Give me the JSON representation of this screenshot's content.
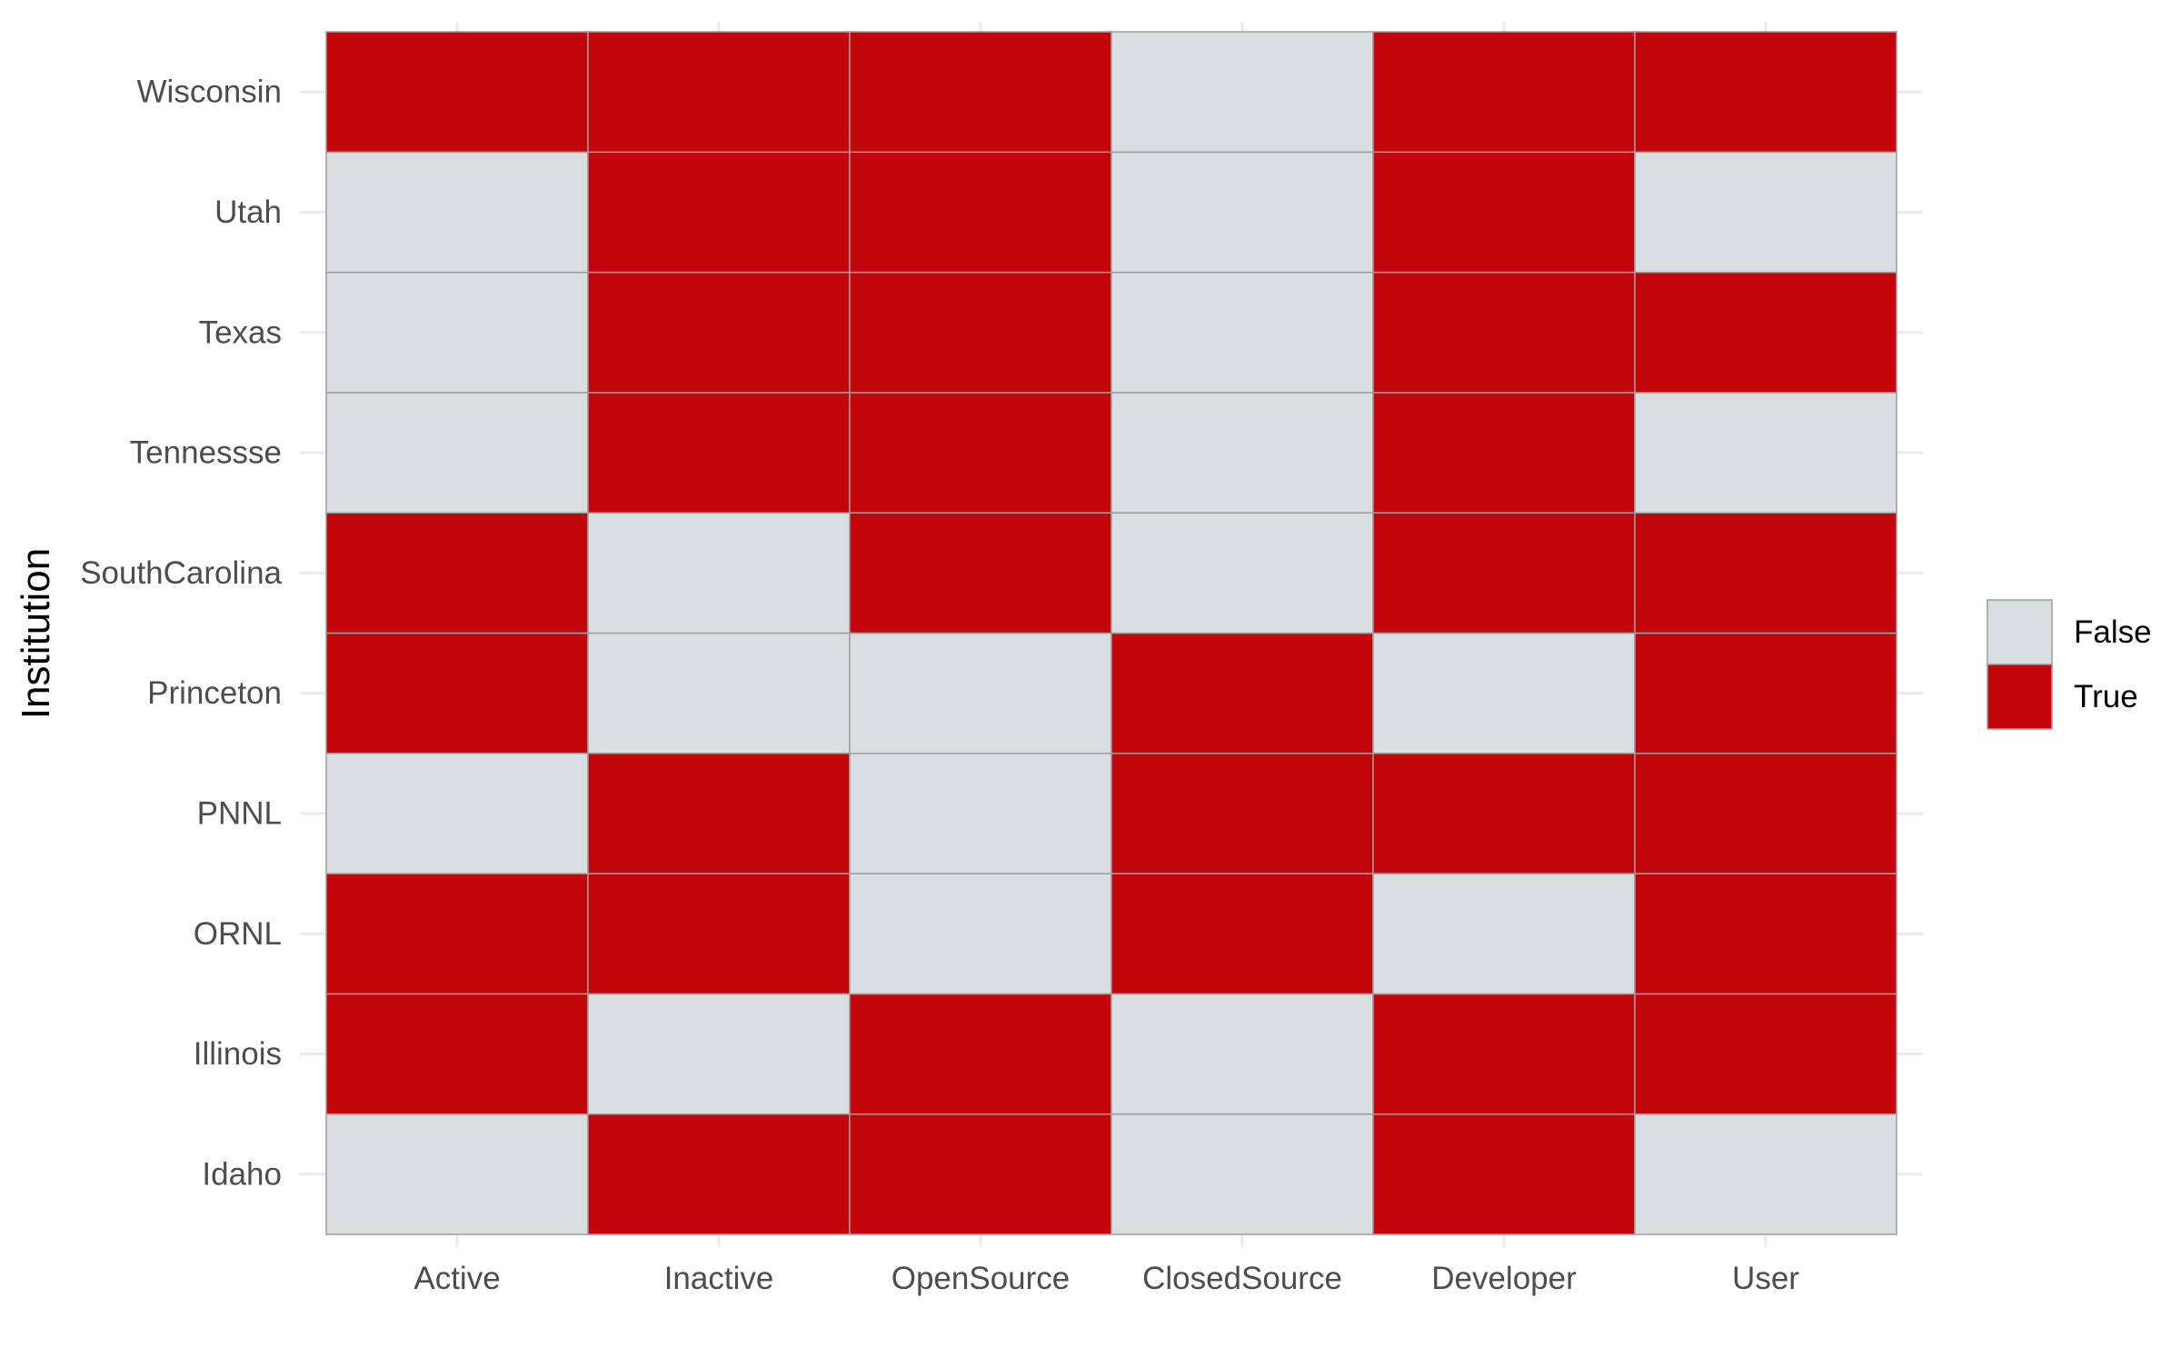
{
  "chart_data": {
    "type": "heatmap",
    "title": "",
    "xlabel": "",
    "ylabel": "Institution",
    "x_categories": [
      "Active",
      "Inactive",
      "OpenSource",
      "ClosedSource",
      "Developer",
      "User"
    ],
    "y_categories": [
      "Idaho",
      "Illinois",
      "ORNL",
      "PNNL",
      "Princeton",
      "SouthCarolina",
      "Tennessse",
      "Texas",
      "Utah",
      "Wisconsin"
    ],
    "values": {
      "Wisconsin": [
        true,
        true,
        true,
        false,
        true,
        true
      ],
      "Utah": [
        false,
        true,
        true,
        false,
        true,
        false
      ],
      "Texas": [
        false,
        true,
        true,
        false,
        true,
        true
      ],
      "Tennessse": [
        false,
        true,
        true,
        false,
        true,
        false
      ],
      "SouthCarolina": [
        true,
        false,
        true,
        false,
        true,
        true
      ],
      "Princeton": [
        true,
        false,
        false,
        true,
        false,
        true
      ],
      "PNNL": [
        false,
        true,
        false,
        true,
        true,
        true
      ],
      "ORNL": [
        true,
        true,
        false,
        true,
        false,
        true
      ],
      "Illinois": [
        true,
        false,
        true,
        false,
        true,
        true
      ],
      "Idaho": [
        false,
        true,
        true,
        false,
        true,
        false
      ]
    },
    "legend": {
      "placement": "right",
      "entries": [
        {
          "label": "False",
          "color": "#d9dee0"
        },
        {
          "label": "True",
          "color": "#c3060c"
        }
      ]
    },
    "grid": true
  }
}
